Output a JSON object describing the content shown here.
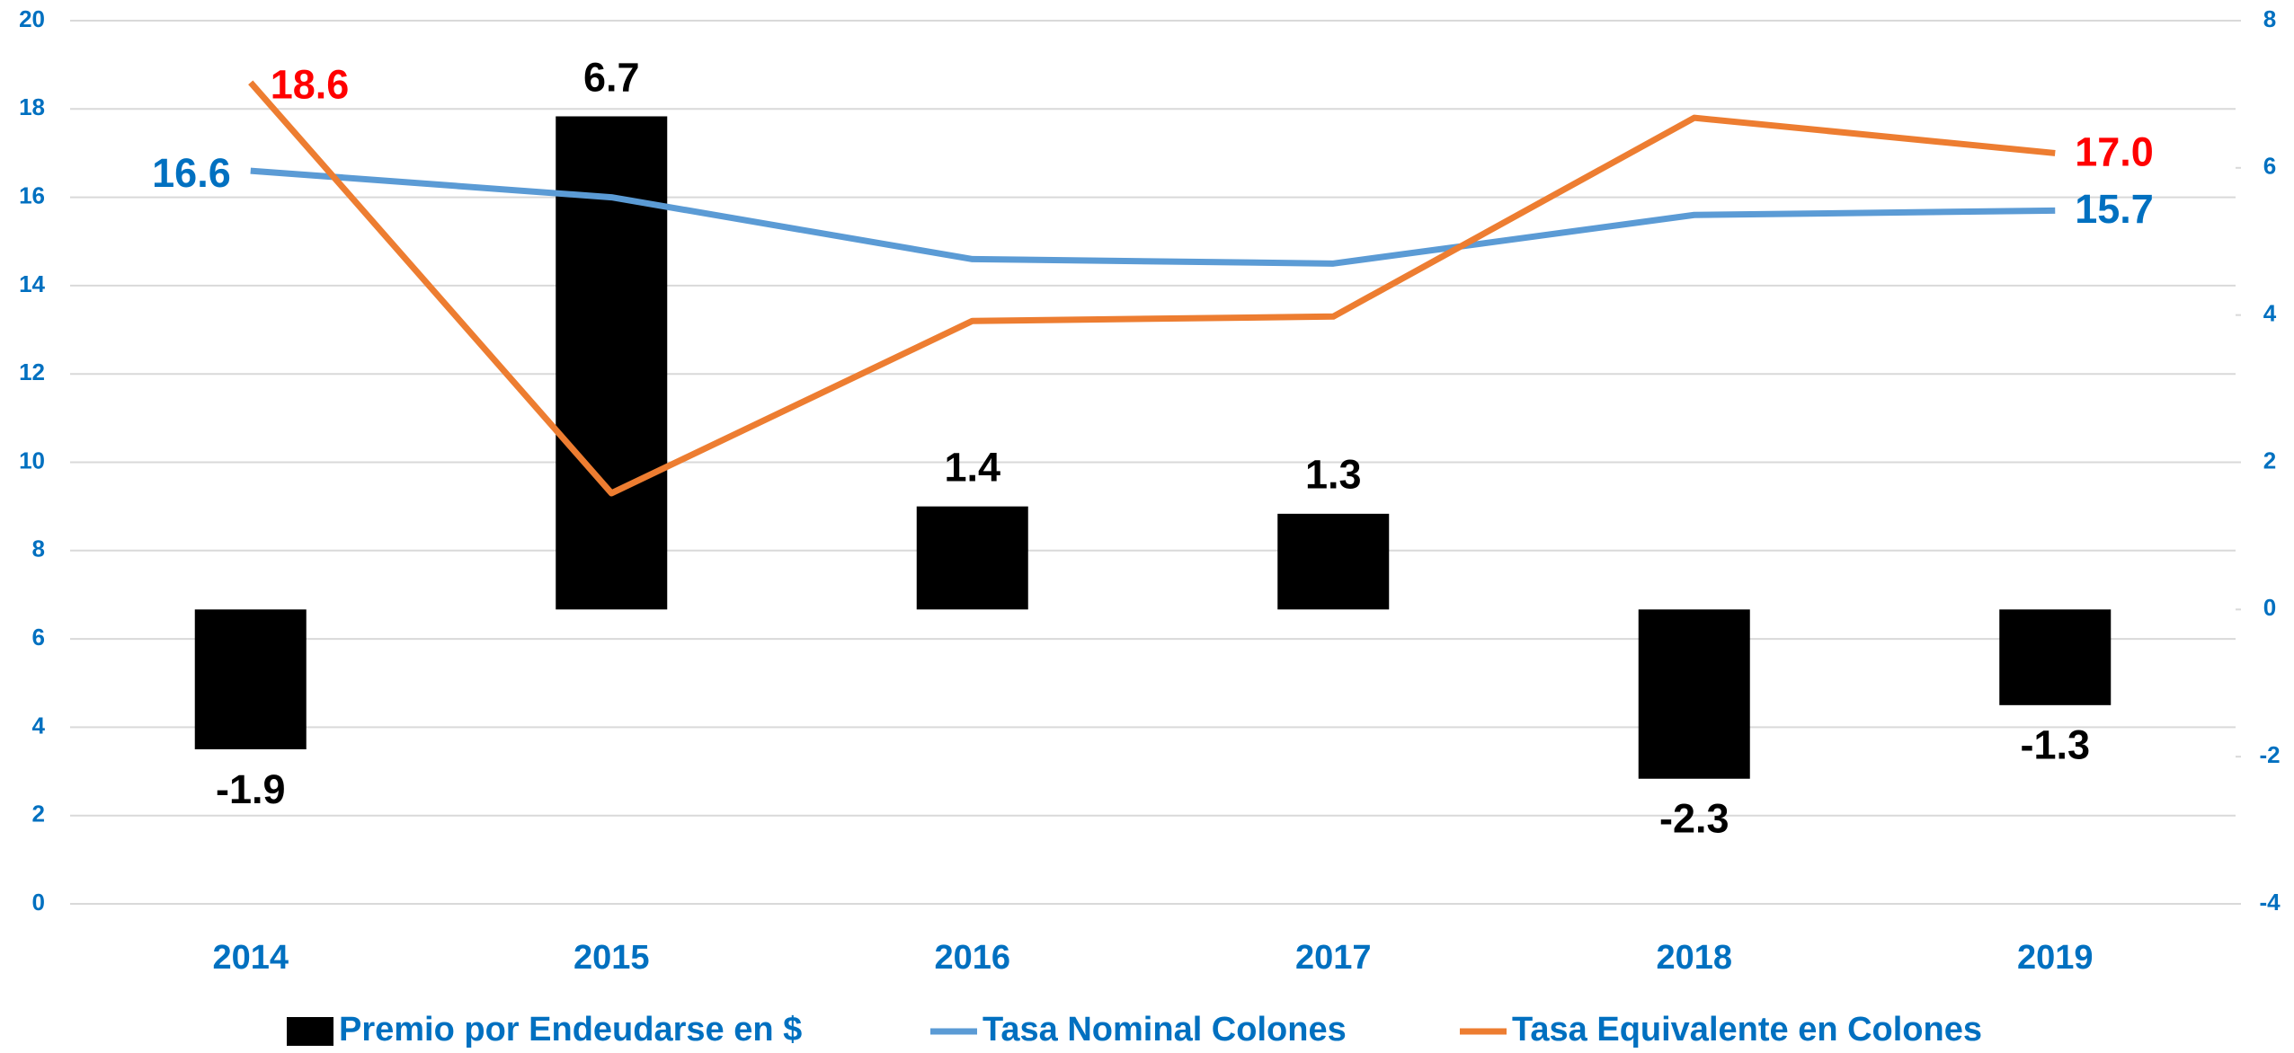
{
  "chart_data": {
    "type": "bar_line",
    "categories": [
      "2014",
      "2015",
      "2016",
      "2017",
      "2018",
      "2019"
    ],
    "series": [
      {
        "name": "Premio por Endeudarse en $",
        "type": "bar",
        "axis": "y2",
        "color": "#000000",
        "label_color": "#000000",
        "values": [
          -1.9,
          6.7,
          1.4,
          1.3,
          -2.3,
          -1.3
        ]
      },
      {
        "name": "Tasa Nominal Colones",
        "type": "line",
        "axis": "y",
        "color": "#5b9bd5",
        "label_color": "#0070c0",
        "values": [
          16.6,
          16.0,
          14.6,
          14.5,
          15.6,
          15.7
        ],
        "value_labels": [
          "16.6",
          null,
          null,
          null,
          null,
          "15.7"
        ]
      },
      {
        "name": "Tasa Equivalente en Colones",
        "type": "line",
        "axis": "y",
        "color": "#ed7d31",
        "label_color": "#ff0000",
        "values": [
          18.6,
          9.3,
          13.2,
          13.3,
          17.8,
          17.0
        ],
        "value_labels": [
          "18.6",
          null,
          null,
          null,
          null,
          "17.0"
        ]
      }
    ],
    "ylim": [
      0,
      20
    ],
    "yticks": [
      0,
      2,
      4,
      6,
      8,
      10,
      12,
      14,
      16,
      18,
      20
    ],
    "y2lim": [
      -4,
      8
    ],
    "y2ticks": [
      -4,
      -2,
      0,
      2,
      4,
      6,
      8
    ],
    "grid": true,
    "legend": "bottom",
    "axis_label_color": "#0070c0"
  }
}
